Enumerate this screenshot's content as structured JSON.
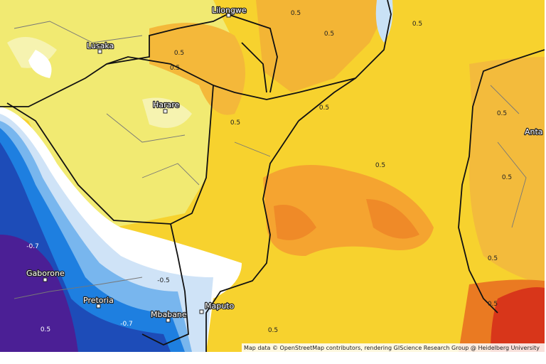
{
  "cities": [
    {
      "label": "Lilongwe"
    },
    {
      "label": "Lusaka"
    },
    {
      "label": "Harare"
    },
    {
      "label": "Gaborone"
    },
    {
      "label": "Pretoria"
    },
    {
      "label": "Mbabane"
    },
    {
      "label": "Maputo"
    },
    {
      "label": "Anta"
    }
  ],
  "contour_labels": [
    "0.5",
    "0.5",
    "0.5",
    "0.5",
    "0.5",
    "0.5",
    "0.5",
    "0.5",
    "0.5",
    "0.5",
    "0.5",
    "0.5",
    "-0.5",
    "-0.7",
    "-0.7",
    "0.5",
    "0.5"
  ],
  "attribution": "Map data © OpenStreetMap contributors, rendering GIScience Research Group @ Heidelberg University"
}
